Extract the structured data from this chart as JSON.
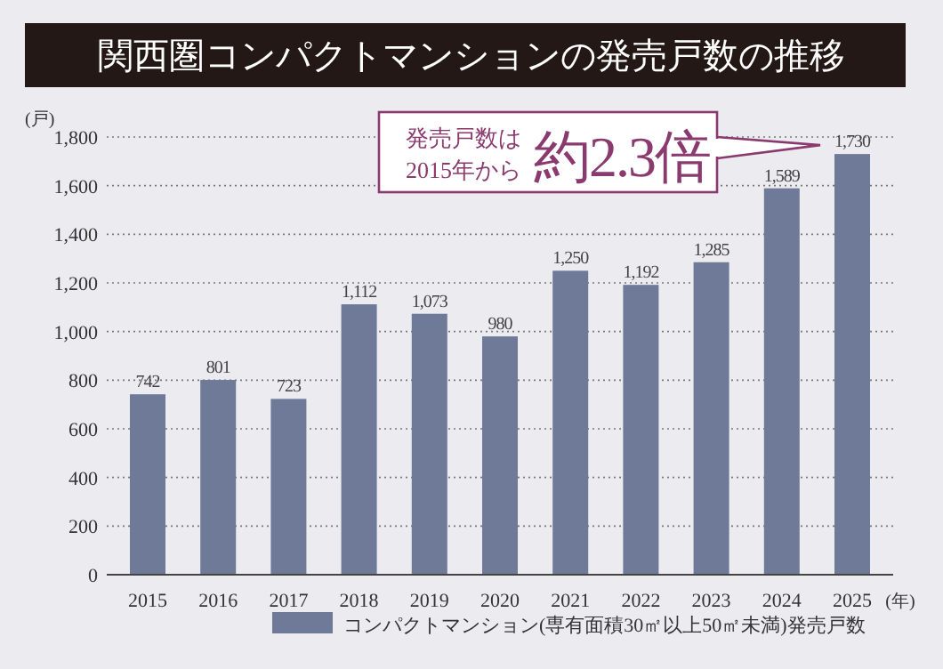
{
  "chart_data": {
    "type": "bar",
    "title": "関西圏コンパクトマンションの発売戸数の推移",
    "xlabel": "(年)",
    "ylabel": "(戸)",
    "categories": [
      "2015",
      "2016",
      "2017",
      "2018",
      "2019",
      "2020",
      "2021",
      "2022",
      "2023",
      "2024",
      "2025"
    ],
    "series": [
      {
        "name": "コンパクトマンション(専有面積30㎡以上50㎡未満)発売戸数",
        "color": "#6f7a98",
        "values": [
          742,
          801,
          723,
          1112,
          1073,
          980,
          1250,
          1192,
          1285,
          1589,
          1730
        ]
      }
    ],
    "ylim": [
      0,
      1800
    ],
    "yticks": [
      0,
      {
        "value": 200,
        "label": "200"
      },
      {
        "value": 400,
        "label": "400"
      },
      {
        "value": 600,
        "label": "600"
      },
      {
        "value": 800,
        "label": "800"
      },
      {
        "value": 1000,
        "label": "1,000"
      },
      {
        "value": 1200,
        "label": "1,200"
      },
      {
        "value": 1400,
        "label": "1,400"
      },
      {
        "value": 1600,
        "label": "1,600"
      },
      {
        "value": 1800,
        "label": "1,800"
      }
    ],
    "value_labels": [
      "742",
      "801",
      "723",
      "1,112",
      "1,073",
      "980",
      "1,250",
      "1,192",
      "1,285",
      "1,589",
      "1,730"
    ],
    "grid": "y",
    "legend": "bottom",
    "annotations": [
      "発売戸数は\n2015年から",
      {
        "text": "約2.3倍",
        "x": "2025",
        "y": 1730
      }
    ]
  }
}
